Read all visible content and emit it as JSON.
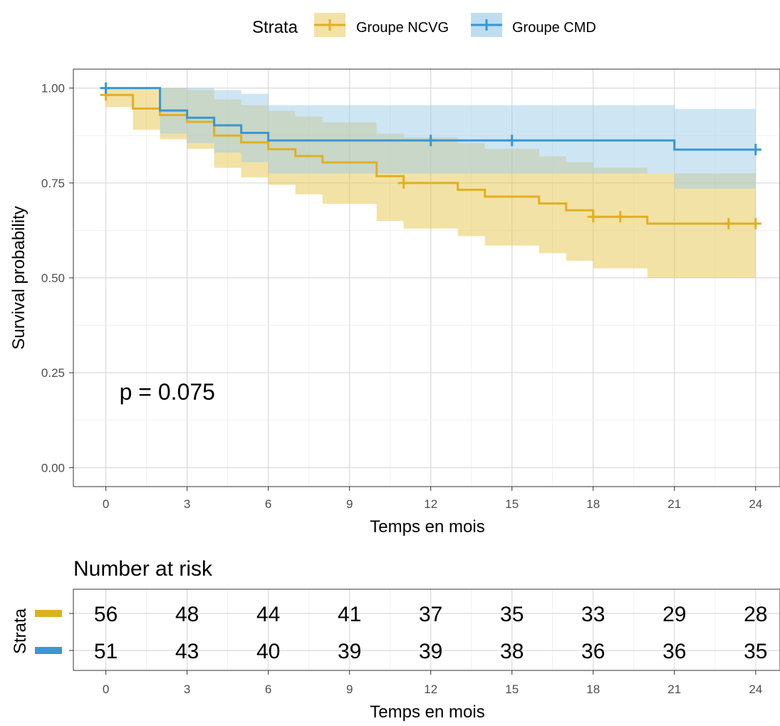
{
  "legend": {
    "title": "Strata",
    "items": [
      {
        "label": "Groupe NCVG",
        "color": "#E0B023"
      },
      {
        "label": "Groupe CMD",
        "color": "#3A97D0"
      }
    ]
  },
  "chart_data": {
    "type": "line",
    "subtype": "kaplan-meier survival curve with confidence bands",
    "xlabel": "Temps en mois",
    "ylabel": "Survival probability",
    "x_ticks": [
      0,
      3,
      6,
      9,
      12,
      15,
      18,
      21,
      24
    ],
    "x_tick_labels": [
      "0",
      "3",
      "6",
      "9",
      "12",
      "15",
      "18",
      "21",
      "24"
    ],
    "xlim": [
      -1.2,
      24.9
    ],
    "y_ticks": [
      0,
      0.25,
      0.5,
      0.75,
      1.0
    ],
    "y_tick_labels": [
      "0.00",
      "0.25",
      "0.50",
      "0.75",
      "1.00"
    ],
    "ylim": [
      -0.05,
      1.05
    ],
    "grid": true,
    "legend_position": "top",
    "annotation": "p = 0.075",
    "annotation_position": {
      "x": 0.5,
      "y": 0.19
    },
    "series": [
      {
        "name": "Groupe NCVG",
        "color": "#E0B023",
        "band_color": "#E8C54B",
        "steps": [
          [
            0,
            0.982
          ],
          [
            1,
            0.946
          ],
          [
            2,
            0.929
          ],
          [
            3,
            0.911
          ],
          [
            4,
            0.875
          ],
          [
            5,
            0.857
          ],
          [
            6,
            0.839
          ],
          [
            7,
            0.821
          ],
          [
            8,
            0.804
          ],
          [
            10,
            0.768
          ],
          [
            11,
            0.75
          ],
          [
            13,
            0.732
          ],
          [
            14,
            0.714
          ],
          [
            16,
            0.696
          ],
          [
            17,
            0.678
          ],
          [
            18,
            0.661
          ],
          [
            20,
            0.643
          ],
          [
            24,
            0.643
          ]
        ],
        "lower": [
          [
            0,
            0.95
          ],
          [
            1,
            0.89
          ],
          [
            2,
            0.865
          ],
          [
            3,
            0.84
          ],
          [
            4,
            0.79
          ],
          [
            5,
            0.765
          ],
          [
            6,
            0.745
          ],
          [
            7,
            0.72
          ],
          [
            8,
            0.695
          ],
          [
            10,
            0.65
          ],
          [
            11,
            0.63
          ],
          [
            13,
            0.61
          ],
          [
            14,
            0.585
          ],
          [
            16,
            0.565
          ],
          [
            17,
            0.545
          ],
          [
            18,
            0.525
          ],
          [
            20,
            0.5
          ],
          [
            24,
            0.5
          ]
        ],
        "upper": [
          [
            0,
            1.0
          ],
          [
            2,
            1.0
          ],
          [
            3,
            0.995
          ],
          [
            4,
            0.97
          ],
          [
            5,
            0.955
          ],
          [
            6,
            0.94
          ],
          [
            7,
            0.925
          ],
          [
            8,
            0.91
          ],
          [
            10,
            0.88
          ],
          [
            11,
            0.87
          ],
          [
            13,
            0.855
          ],
          [
            14,
            0.84
          ],
          [
            16,
            0.82
          ],
          [
            17,
            0.805
          ],
          [
            18,
            0.79
          ],
          [
            20,
            0.775
          ],
          [
            24,
            0.775
          ]
        ],
        "censor_times": [
          0,
          11,
          18,
          19,
          23,
          24
        ],
        "at_risk": [
          56,
          48,
          44,
          41,
          37,
          35,
          33,
          29,
          28
        ]
      },
      {
        "name": "Groupe CMD",
        "color": "#3A97D0",
        "band_color": "#9DCBEA",
        "steps": [
          [
            0,
            1.0
          ],
          [
            2,
            0.941
          ],
          [
            3,
            0.922
          ],
          [
            4,
            0.902
          ],
          [
            5,
            0.882
          ],
          [
            6,
            0.862
          ],
          [
            21,
            0.838
          ],
          [
            24,
            0.838
          ]
        ],
        "lower": [
          [
            0,
            1.0
          ],
          [
            2,
            0.88
          ],
          [
            3,
            0.855
          ],
          [
            4,
            0.83
          ],
          [
            5,
            0.805
          ],
          [
            6,
            0.775
          ],
          [
            21,
            0.735
          ],
          [
            24,
            0.735
          ]
        ],
        "upper": [
          [
            0,
            1.0
          ],
          [
            2,
            1.0
          ],
          [
            4,
            0.995
          ],
          [
            5,
            0.985
          ],
          [
            6,
            0.955
          ],
          [
            21,
            0.945
          ],
          [
            24,
            0.945
          ]
        ],
        "censor_times": [
          0,
          12,
          15,
          24
        ],
        "at_risk": [
          51,
          43,
          40,
          39,
          39,
          38,
          36,
          36,
          35
        ]
      }
    ]
  },
  "risk_table": {
    "title": "Number at risk",
    "ylabel": "Strata",
    "xlabel": "Temps en mois",
    "x_tick_labels": [
      "0",
      "3",
      "6",
      "9",
      "12",
      "15",
      "18",
      "21",
      "24"
    ]
  }
}
